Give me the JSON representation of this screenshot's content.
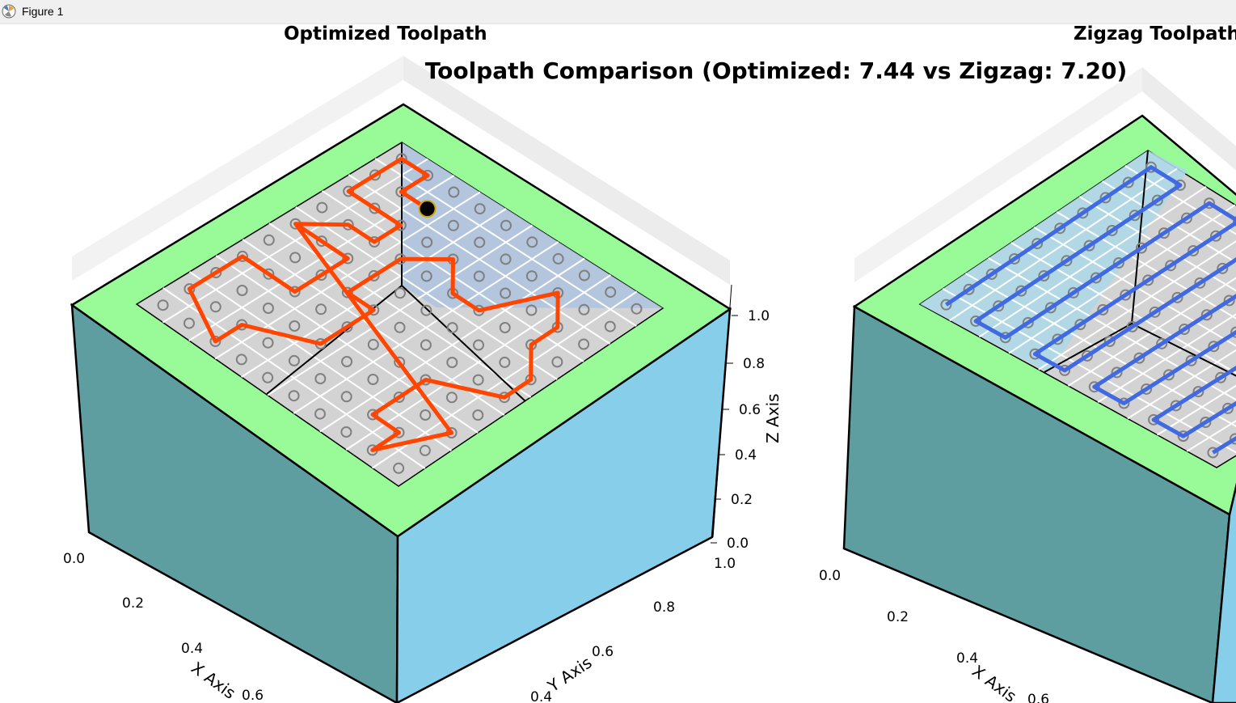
{
  "window": {
    "title": "Figure 1"
  },
  "figure": {
    "suptitle": "Toolpath Comparison (Optimized: 7.44 vs Zigzag: 7.20)"
  },
  "chart_data": [
    {
      "type": "line3d",
      "title": "Optimized Toolpath",
      "xlabel": "X Axis",
      "ylabel": "Y Axis",
      "zlabel": "Z Axis",
      "xlim": [
        0,
        1
      ],
      "ylim": [
        0,
        1
      ],
      "zlim": [
        0,
        1
      ],
      "xticks": [
        "0.0",
        "0.2",
        "0.4",
        "0.6"
      ],
      "yticks": [
        "0.4",
        "0.6",
        "0.8",
        "1.0"
      ],
      "zticks": [
        "0.0",
        "0.2",
        "0.4",
        "0.6",
        "0.8",
        "1.0"
      ],
      "path_color": "#ff4500",
      "grid_points": "10x10",
      "start_marker": "black",
      "surface_colors": {
        "pocket": "#d3d3d3",
        "pocket_region": "#b0c4de",
        "top_rim": "#98fb98",
        "front_face": "#5f9ea0",
        "right_face": "#87ceeb"
      }
    },
    {
      "type": "line3d",
      "title": "Zigzag Toolpath",
      "xlabel": "X Axis",
      "xlim": [
        0,
        1
      ],
      "xticks": [
        "0.0",
        "0.2",
        "0.4",
        "0.6"
      ],
      "path_color": "#4169e1",
      "grid_points": "10x10",
      "surface_colors": {
        "pocket": "#d3d3d3",
        "pocket_region": "#add8e6",
        "top_rim": "#98fb98",
        "front_face": "#5f9ea0",
        "right_face": "#87ceeb"
      }
    }
  ]
}
